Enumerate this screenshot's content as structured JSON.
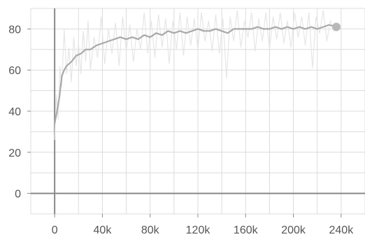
{
  "chart_data": {
    "type": "line",
    "title": "",
    "xlabel": "",
    "ylabel": "",
    "xlim": [
      -20000,
      260000
    ],
    "ylim": [
      -10,
      90
    ],
    "x_ticks": [
      0,
      40000,
      80000,
      120000,
      160000,
      200000,
      240000
    ],
    "x_tick_labels": [
      "0",
      "40k",
      "80k",
      "120k",
      "160k",
      "200k",
      "240k"
    ],
    "y_ticks": [
      0,
      20,
      40,
      60,
      80
    ],
    "y_tick_labels": [
      "0",
      "20",
      "40",
      "60",
      "80"
    ],
    "grid": true,
    "colors": {
      "smoothed": "#a9a9a9",
      "raw": "#e6e6e6",
      "grid": "#dcdcdc",
      "axis": "#888888",
      "end_marker": "#b8b8b8"
    },
    "series": [
      {
        "role": "smoothed",
        "x": [
          0,
          2000,
          4000,
          6000,
          8000,
          10000,
          14000,
          18000,
          22000,
          26000,
          30000,
          35000,
          40000,
          45000,
          50000,
          55000,
          60000,
          65000,
          70000,
          75000,
          80000,
          85000,
          90000,
          95000,
          100000,
          105000,
          110000,
          115000,
          120000,
          125000,
          130000,
          135000,
          140000,
          145000,
          150000,
          155000,
          160000,
          165000,
          170000,
          175000,
          180000,
          185000,
          190000,
          195000,
          200000,
          205000,
          210000,
          215000,
          220000,
          225000,
          230000,
          235000
        ],
        "y": [
          34,
          40,
          47,
          57,
          60,
          62,
          64,
          67,
          68,
          70,
          70,
          72,
          73,
          74,
          75,
          76,
          75,
          76,
          75,
          77,
          76,
          78,
          77,
          79,
          78,
          79,
          78,
          79,
          80,
          79,
          79,
          80,
          79,
          78,
          80,
          80,
          80,
          80,
          81,
          80,
          80,
          81,
          80,
          81,
          80,
          81,
          80,
          81,
          80,
          81,
          82,
          81
        ]
      },
      {
        "role": "raw",
        "x": [
          0,
          1500,
          3000,
          4500,
          6000,
          8000,
          10000,
          12000,
          14000,
          16000,
          18000,
          20000,
          22000,
          24000,
          26000,
          28000,
          30000,
          33000,
          36000,
          39000,
          42000,
          45000,
          48000,
          51000,
          54000,
          57000,
          60000,
          63000,
          66000,
          69000,
          72000,
          75000,
          78000,
          81000,
          84000,
          87000,
          90000,
          93000,
          96000,
          99000,
          102000,
          105000,
          108000,
          111000,
          114000,
          117000,
          120000,
          123000,
          126000,
          129000,
          132000,
          135000,
          138000,
          141000,
          144000,
          147000,
          150000,
          153000,
          156000,
          159000,
          162000,
          165000,
          168000,
          171000,
          174000,
          177000,
          180000,
          183000,
          186000,
          189000,
          192000,
          195000,
          198000,
          201000,
          204000,
          207000,
          210000,
          213000,
          216000,
          219000,
          222000,
          225000,
          228000,
          231000,
          234000,
          236000
        ],
        "y": [
          26,
          48,
          36,
          62,
          52,
          80,
          58,
          71,
          54,
          76,
          62,
          73,
          58,
          79,
          64,
          84,
          60,
          76,
          66,
          86,
          63,
          80,
          68,
          83,
          62,
          86,
          69,
          82,
          64,
          80,
          70,
          88,
          68,
          84,
          66,
          87,
          71,
          85,
          63,
          84,
          70,
          88,
          67,
          86,
          72,
          85,
          70,
          88,
          74,
          84,
          69,
          87,
          68,
          85,
          56,
          86,
          74,
          89,
          71,
          84,
          76,
          88,
          69,
          85,
          74,
          88,
          70,
          86,
          75,
          88,
          73,
          84,
          71,
          88,
          76,
          86,
          72,
          88,
          61,
          86,
          78,
          89,
          74,
          84,
          79,
          82
        ]
      }
    ],
    "end_marker": {
      "x": 236000,
      "y": 81
    }
  }
}
